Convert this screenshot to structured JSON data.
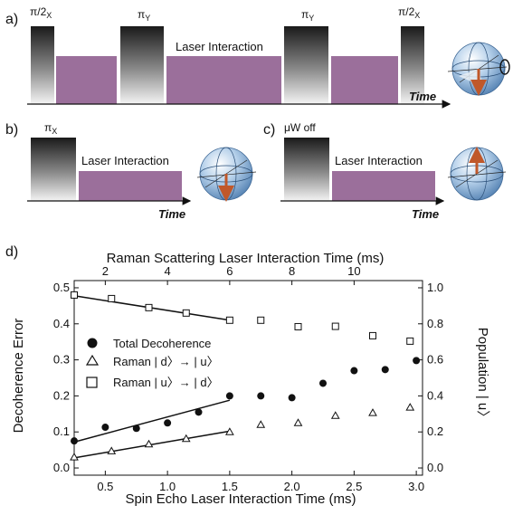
{
  "panels": {
    "a": {
      "letter": "a)",
      "pulse_labels": [
        "π/2",
        "π",
        "π",
        "π/2"
      ],
      "pulse_subs": [
        "X",
        "Y",
        "Y",
        "X"
      ],
      "interaction_label": "Laser Interaction",
      "time_label": "Time"
    },
    "b": {
      "letter": "b)",
      "pulse_label": "π",
      "pulse_sub": "X",
      "interaction_label": "Laser Interaction",
      "time_label": "Time"
    },
    "c": {
      "letter": "c)",
      "pulse_label": "μW off",
      "interaction_label": "Laser Interaction",
      "time_label": "Time"
    },
    "d": {
      "letter": "d)"
    }
  },
  "colors": {
    "interaction": "#9b6f9b",
    "pulse_top": "#1a1a1a",
    "pulse_bottom": "#f2f2f2",
    "arrow": "#c0582a",
    "sphere": "#8fb4d8"
  },
  "chart_data": {
    "type": "scatter",
    "xlabel": "Spin Echo Laser Interaction Time (ms)",
    "x_top_label": "Raman Scattering Laser Interaction Time (ms)",
    "ylabel": "Decoherence Error",
    "y_right_label": "Population | u〉",
    "xlim": [
      0.25,
      3.05
    ],
    "ylim": [
      -0.02,
      0.52
    ],
    "x_ticks": [
      0.5,
      1.0,
      1.5,
      2.0,
      2.5,
      3.0
    ],
    "x_tick_labels": [
      "0.5",
      "1.0",
      "1.5",
      "2.0",
      "2.5",
      "3.0"
    ],
    "y_ticks": [
      0.0,
      0.1,
      0.2,
      0.3,
      0.4,
      0.5
    ],
    "y_tick_labels": [
      "0.0",
      "0.1",
      "0.2",
      "0.3",
      "0.4",
      "0.5"
    ],
    "top_ticks": [
      2,
      4,
      6,
      8,
      10
    ],
    "top_tick_labels": [
      "2",
      "4",
      "6",
      "8",
      "10"
    ],
    "right_ticks": [
      0.0,
      0.2,
      0.4,
      0.6,
      0.8,
      1.0
    ],
    "right_tick_labels": [
      "0.0",
      "0.2",
      "0.4",
      "0.6",
      "0.8",
      "1.0"
    ],
    "grid": false,
    "legend_position": "center-left",
    "series": [
      {
        "name": "Total Decoherence",
        "marker": "filled-circle",
        "x": [
          0.25,
          0.5,
          0.75,
          1.0,
          1.25,
          1.5,
          1.75,
          2.0,
          2.25,
          2.5,
          2.75,
          3.0
        ],
        "y": [
          0.075,
          0.113,
          0.11,
          0.125,
          0.155,
          0.2,
          0.2,
          0.195,
          0.235,
          0.27,
          0.273,
          0.298
        ],
        "fit": [
          [
            0.25,
            0.072
          ],
          [
            1.5,
            0.188
          ]
        ]
      },
      {
        "name": "Raman | d〉→ | u〉",
        "marker": "open-triangle",
        "x": [
          0.25,
          0.55,
          0.85,
          1.15,
          1.5,
          1.75,
          2.05,
          2.35,
          2.65,
          2.95
        ],
        "y": [
          0.03,
          0.047,
          0.066,
          0.081,
          0.1,
          0.12,
          0.125,
          0.145,
          0.153,
          0.168
        ],
        "fit": [
          [
            0.25,
            0.028
          ],
          [
            1.5,
            0.102
          ]
        ]
      },
      {
        "name": "Raman | u〉→ | d〉",
        "marker": "open-square",
        "x": [
          0.25,
          0.55,
          0.85,
          1.15,
          1.5,
          1.75,
          2.05,
          2.35,
          2.65,
          2.95
        ],
        "y": [
          0.48,
          0.47,
          0.445,
          0.43,
          0.41,
          0.41,
          0.392,
          0.393,
          0.367,
          0.352
        ],
        "fit": [
          [
            0.25,
            0.478
          ],
          [
            1.5,
            0.41
          ]
        ]
      }
    ]
  }
}
